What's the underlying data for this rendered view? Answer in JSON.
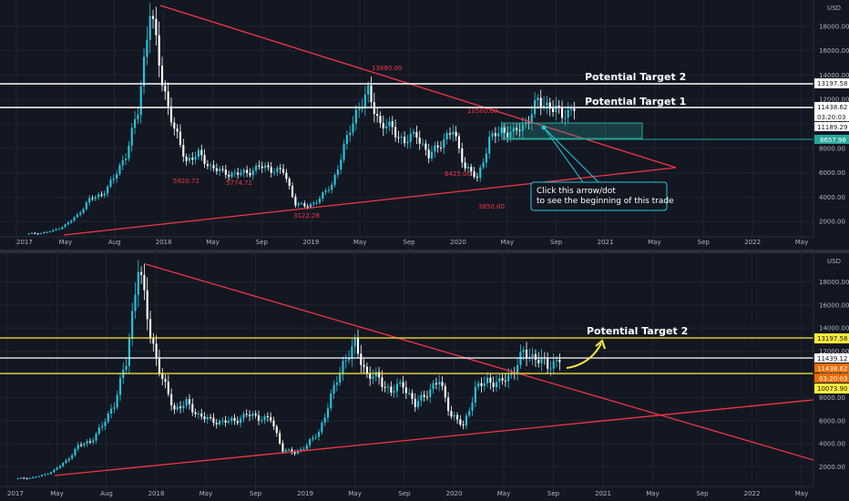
{
  "chart_data": [
    {
      "type": "candlestick",
      "currency": "USD",
      "x_ticks": [
        "2017",
        "May",
        "Aug",
        "2018",
        "May",
        "Sep",
        "2019",
        "May",
        "Sep",
        "2020",
        "May",
        "Sep",
        "2021",
        "May",
        "Sep",
        "2022",
        "May"
      ],
      "y_ticks": [
        "18000.00",
        "16000.00",
        "14000.00",
        "12000.00",
        "10000.00",
        "8000.00",
        "6000.00",
        "4000.00",
        "2000.00"
      ],
      "ylim": [
        0,
        20000
      ],
      "price_series": [
        [
          1000,
          1050,
          1250,
          1700,
          2500,
          3800,
          4200,
          5500,
          7500,
          11000,
          19500,
          13500,
          9500,
          7000,
          7500,
          6500,
          6000,
          5900,
          6000,
          6500,
          6300,
          6100,
          3500,
          3200,
          3900,
          5000,
          8000,
          11000,
          12500,
          10000,
          9600,
          8500,
          9200,
          7300,
          8500,
          9400,
          6500,
          5500,
          8700,
          9500,
          9200,
          10100,
          11800,
          11500,
          10700,
          11400
        ]
      ],
      "levels": [
        {
          "label": "Potential Target 2",
          "value": 13197.58,
          "tag": "13197.58"
        },
        {
          "label": "Potential Target 1",
          "value": 11438.62,
          "tag": "11438.62"
        }
      ],
      "price_tags": [
        "03:20:03",
        "11189.29",
        "8657.96"
      ],
      "annotations": [
        "13880.00",
        "5920.72",
        "5774.72",
        "3122.28",
        "6425.00",
        "3850.00",
        "10500.00"
      ],
      "note": [
        "Click this arrow/dot",
        "to see the beginning of this trade"
      ]
    },
    {
      "type": "candlestick",
      "currency": "USD",
      "x_ticks": [
        "2017",
        "May",
        "Aug",
        "2018",
        "May",
        "Sep",
        "2019",
        "May",
        "Sep",
        "2020",
        "May",
        "Sep",
        "2021",
        "May",
        "Sep",
        "2022",
        "May"
      ],
      "y_ticks": [
        "18000.00",
        "16000.00",
        "14000.00",
        "12000.00",
        "10000.00",
        "8000.00",
        "6000.00",
        "4000.00",
        "2000.00"
      ],
      "ylim": [
        0,
        20000
      ],
      "price_series": [
        [
          1000,
          1050,
          1250,
          1700,
          2500,
          3800,
          4200,
          5500,
          7500,
          11000,
          19500,
          13500,
          9500,
          7000,
          7500,
          6500,
          6000,
          5900,
          6000,
          6500,
          6300,
          6100,
          3500,
          3200,
          3900,
          5000,
          8000,
          11000,
          12500,
          10000,
          9600,
          8500,
          9200,
          7300,
          8500,
          9400,
          6500,
          5500,
          8700,
          9500,
          9200,
          10100,
          11800,
          11500,
          10700,
          11400
        ]
      ],
      "levels": [
        {
          "label": "Potential Target 2",
          "value": 13197.58,
          "tag": "13197.58"
        },
        {
          "label": "",
          "value": 11439.12,
          "tag": "11439.12"
        },
        {
          "label": "",
          "value": 10073.9,
          "tag": "10073.90"
        }
      ],
      "price_tags": [
        "11438.62",
        "03:20:03"
      ],
      "target_label": "Potential Target 2"
    }
  ],
  "colors": {
    "background": "#131722",
    "grid": "#1f2331",
    "axis_text": "#b2b5be",
    "candle_up": "#26c6da",
    "candle_down": "#ffffff",
    "trendline": "#f23645",
    "level_white": "#ffffff",
    "level_yellow": "#ffeb3b",
    "zone": "#26a69a",
    "orange_tag": "#ef6c00"
  }
}
